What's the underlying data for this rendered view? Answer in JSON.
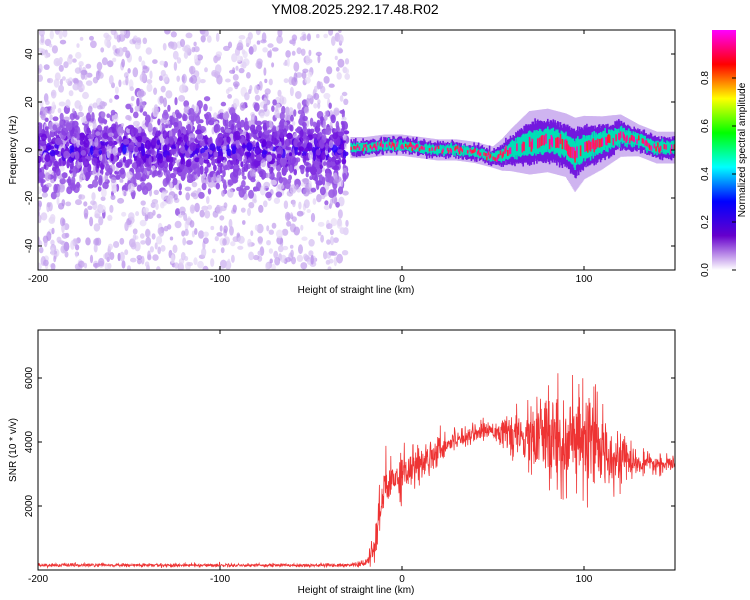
{
  "figure": {
    "title": "YM08.2025.292.17.48.R02"
  },
  "chart_data": [
    {
      "type": "heatmap",
      "name": "spectrogram",
      "title": "YM08.2025.292.17.48.R02",
      "xlabel": "Height of straight line (km)",
      "ylabel": "Frequency (Hz)",
      "xlim": [
        -200,
        150
      ],
      "ylim": [
        -50,
        50
      ],
      "xticks": [
        -200,
        -100,
        0,
        100
      ],
      "yticks": [
        -40,
        -20,
        0,
        20,
        40
      ],
      "xtick_labels": [
        "-200",
        "-100",
        "0",
        "100"
      ],
      "ytick_labels": [
        "-40",
        "-20",
        "0",
        "20",
        "40"
      ],
      "noise_region_x": [
        -200,
        -30
      ],
      "signal_trace": {
        "x": [
          -28,
          -20,
          -10,
          0,
          10,
          20,
          30,
          40,
          50,
          55,
          60,
          70,
          80,
          90,
          95,
          100,
          110,
          120,
          130,
          140,
          150
        ],
        "freq": [
          1,
          1,
          2,
          2,
          1,
          0,
          0,
          -1,
          -3,
          -2,
          0,
          3,
          4,
          2,
          -2,
          1,
          3,
          6,
          4,
          1,
          1
        ],
        "spread": [
          2,
          2,
          2,
          2,
          2,
          2,
          2,
          2,
          2,
          3,
          4,
          6,
          6,
          6,
          7,
          6,
          5,
          4,
          3,
          3,
          3
        ]
      },
      "colorbar": {
        "label": "Normalized spectral amplitude",
        "range": [
          0,
          1
        ],
        "ticks": [
          0.0,
          0.2,
          0.4,
          0.6,
          0.8
        ],
        "tick_labels": [
          "0.0",
          "0.2",
          "0.4",
          "0.6",
          "0.8"
        ],
        "colors": [
          "#ff00ff",
          "#ff0000",
          "#ffff00",
          "#00ff00",
          "#00ffff",
          "#0000ff",
          "#6600cc",
          "#ffffff"
        ]
      }
    },
    {
      "type": "line",
      "name": "snr",
      "xlabel": "Height of straight line (km)",
      "ylabel": "SNR (10 * v/v)",
      "xlim": [
        -200,
        150
      ],
      "ylim": [
        0,
        7500
      ],
      "xticks": [
        -200,
        -100,
        0,
        100
      ],
      "yticks": [
        2000,
        4000,
        6000
      ],
      "xtick_labels": [
        "-200",
        "-100",
        "0",
        "100"
      ],
      "ytick_labels": [
        "2000",
        "4000",
        "6000"
      ],
      "color": "#ee3333",
      "envelope": {
        "x": [
          -200,
          -100,
          -30,
          -20,
          -15,
          -10,
          0,
          10,
          20,
          30,
          40,
          50,
          60,
          70,
          80,
          90,
          100,
          110,
          120,
          130,
          140,
          150
        ],
        "mean": [
          150,
          150,
          150,
          200,
          700,
          2500,
          3100,
          3300,
          3800,
          4100,
          4300,
          4400,
          4200,
          4100,
          4100,
          4000,
          3900,
          3800,
          3500,
          3300,
          3300,
          3300
        ],
        "amp": [
          50,
          50,
          50,
          100,
          500,
          900,
          700,
          600,
          450,
          300,
          250,
          300,
          500,
          900,
          1600,
          1800,
          1600,
          1100,
          700,
          350,
          250,
          250
        ]
      }
    }
  ]
}
